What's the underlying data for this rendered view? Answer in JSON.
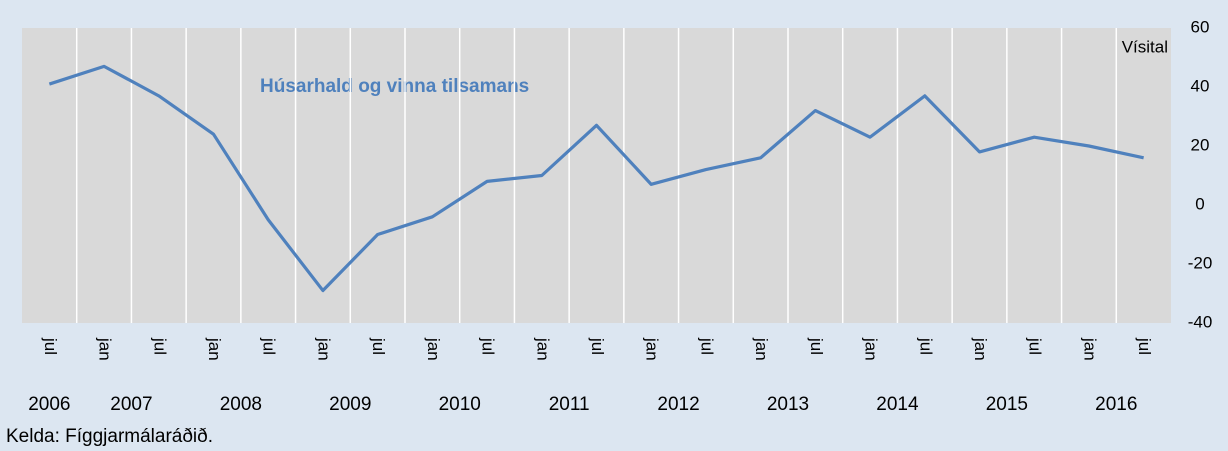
{
  "chart_data": {
    "type": "line",
    "series_label": "Húsarhald og vinna tilsamans",
    "y_axis_label": "Vísital",
    "source": "Kelda: Fíggjarmálaráðið.",
    "categories": [
      "jul",
      "jan",
      "jul",
      "jan",
      "jul",
      "jan",
      "jul",
      "jan",
      "jul",
      "jan",
      "jul",
      "jan",
      "jul",
      "jan",
      "jul",
      "jan",
      "jul",
      "jan",
      "jul",
      "jan",
      "jul"
    ],
    "year_labels": [
      "2006",
      "2007",
      "2008",
      "2009",
      "2010",
      "2011",
      "2012",
      "2013",
      "2014",
      "2015",
      "2016"
    ],
    "series": [
      {
        "name": "Húsarhald og vinna tilsamans",
        "color": "#4f81bd",
        "values": [
          41,
          47,
          37,
          24,
          -5,
          -29,
          -10,
          -4,
          8,
          10,
          27,
          7,
          12,
          16,
          32,
          23,
          37,
          18,
          23,
          20,
          16
        ]
      }
    ],
    "ylim": [
      -40,
      60
    ],
    "yticks": [
      -40,
      -20,
      0,
      20,
      40,
      60
    ],
    "grid": true
  }
}
